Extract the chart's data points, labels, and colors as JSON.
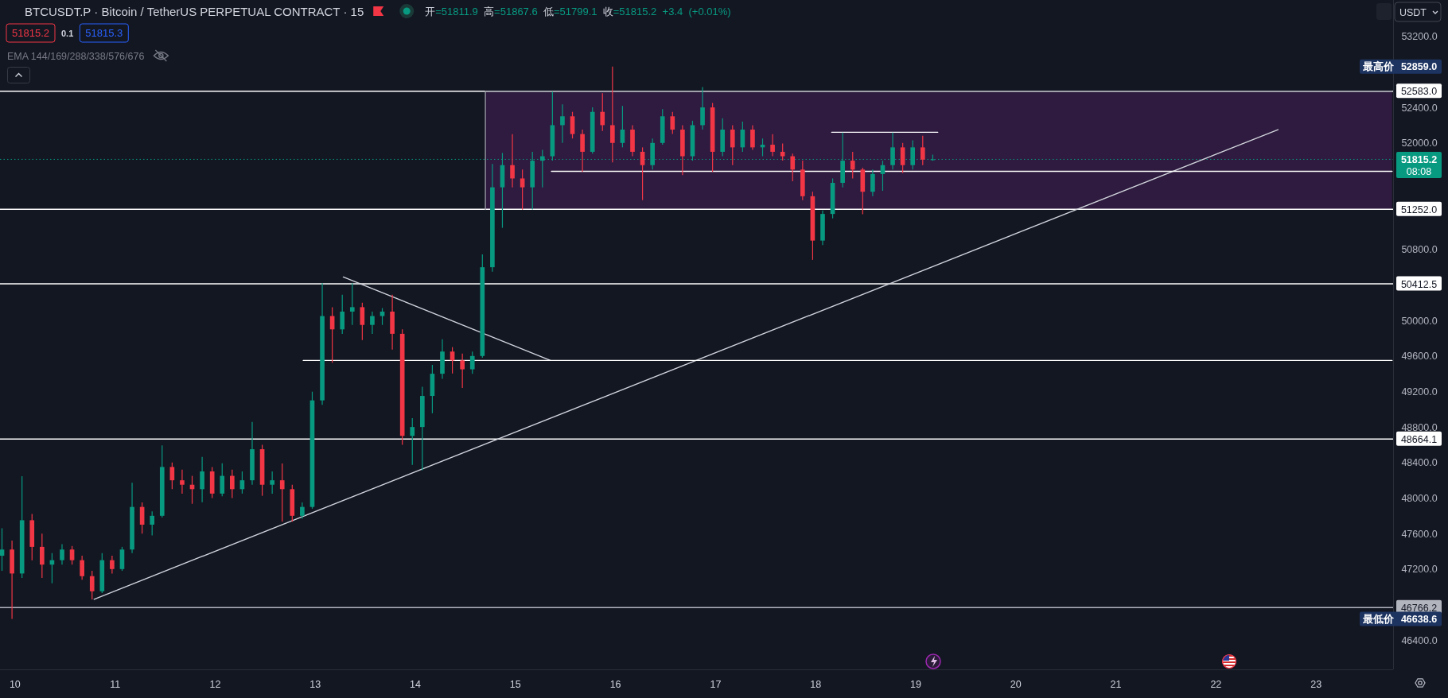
{
  "chart_data": {
    "type": "candlestick",
    "title": "BTCUSDT.P · Bitcoin / TetherUS PERPETUAL CONTRACT · 15",
    "subtitle": "开=51811.9 高=51867.6 低=51799.1 收=51815.2 +3.4 (+0.01%)",
    "x": [
      9.87,
      9.97,
      10.07,
      10.17,
      10.27,
      10.37,
      10.47,
      10.57,
      10.67,
      10.77,
      10.87,
      10.97,
      11.07,
      11.17,
      11.27,
      11.37,
      11.47,
      11.57,
      11.67,
      11.77,
      11.87,
      11.97,
      12.07,
      12.17,
      12.27,
      12.37,
      12.47,
      12.57,
      12.67,
      12.77,
      12.87,
      12.97,
      13.07,
      13.17,
      13.27,
      13.37,
      13.47,
      13.57,
      13.67,
      13.77,
      13.87,
      13.97,
      14.07,
      14.17,
      14.27,
      14.37,
      14.47,
      14.57,
      14.67,
      14.77,
      14.87,
      14.97,
      15.07,
      15.17,
      15.27,
      15.37,
      15.47,
      15.57,
      15.67,
      15.77,
      15.87,
      15.97,
      16.07,
      16.17,
      16.27,
      16.37,
      16.47,
      16.57,
      16.67,
      16.77,
      16.87,
      16.97,
      17.07,
      17.17,
      17.27,
      17.37,
      17.47,
      17.57,
      17.67,
      17.77,
      17.87,
      17.97,
      18.07,
      18.17,
      18.27,
      18.37,
      18.47,
      18.57,
      18.67,
      18.77,
      18.87,
      18.97,
      19.07,
      19.17
    ],
    "ohlc": [
      [
        47350,
        47660,
        47180,
        47420
      ],
      [
        47420,
        47520,
        46638.6,
        47150
      ],
      [
        47150,
        48245,
        47100,
        47750
      ],
      [
        47750,
        47820,
        47300,
        47450
      ],
      [
        47450,
        47600,
        47100,
        47250
      ],
      [
        47250,
        47380,
        47040,
        47300
      ],
      [
        47300,
        47480,
        47250,
        47420
      ],
      [
        47420,
        47460,
        47250,
        47300
      ],
      [
        47300,
        47350,
        47080,
        47120
      ],
      [
        47120,
        47180,
        46857,
        46950
      ],
      [
        46950,
        47380,
        46930,
        47300
      ],
      [
        47300,
        47350,
        47150,
        47200
      ],
      [
        47200,
        47450,
        47180,
        47420
      ],
      [
        47420,
        48172,
        47380,
        47900
      ],
      [
        47900,
        47950,
        47600,
        47700
      ],
      [
        47700,
        47850,
        47580,
        47800
      ],
      [
        47800,
        48593,
        47780,
        48350
      ],
      [
        48350,
        48400,
        48100,
        48200
      ],
      [
        48200,
        48320,
        48050,
        48150
      ],
      [
        48150,
        48250,
        47935,
        48100
      ],
      [
        48100,
        48463,
        47953,
        48300
      ],
      [
        48300,
        48350,
        48000,
        48050
      ],
      [
        48050,
        48391,
        48020,
        48250
      ],
      [
        48250,
        48320,
        48000,
        48100
      ],
      [
        48100,
        48300,
        48050,
        48200
      ],
      [
        48200,
        48857,
        48150,
        48550
      ],
      [
        48550,
        48600,
        48025,
        48150
      ],
      [
        48150,
        48300,
        48050,
        48200
      ],
      [
        48200,
        48390,
        47734,
        48100
      ],
      [
        48100,
        48150,
        47734,
        47800
      ],
      [
        47800,
        47950,
        47770,
        47900
      ],
      [
        47900,
        49198,
        47880,
        49100
      ],
      [
        49100,
        50419,
        49050,
        50050
      ],
      [
        50050,
        50150,
        49524,
        49900
      ],
      [
        49900,
        50290,
        49850,
        50100
      ],
      [
        50100,
        50419,
        49950,
        50150
      ],
      [
        50150,
        50200,
        49780,
        49950
      ],
      [
        49950,
        50100,
        49850,
        50050
      ],
      [
        50050,
        50140,
        49950,
        50100
      ],
      [
        50100,
        50290,
        49672,
        49850
      ],
      [
        49850,
        49900,
        48600,
        48700
      ],
      [
        48700,
        48900,
        48374,
        48800
      ],
      [
        48800,
        49254,
        48314,
        49150
      ],
      [
        49150,
        49500,
        48955,
        49400
      ],
      [
        49400,
        49788,
        49343,
        49650
      ],
      [
        49650,
        49700,
        49403,
        49550
      ],
      [
        49550,
        49627,
        49240,
        49450
      ],
      [
        49450,
        49650,
        49400,
        49600
      ],
      [
        49600,
        50745,
        49580,
        50600
      ],
      [
        50600,
        51763,
        50550,
        51500
      ],
      [
        51500,
        51887,
        51044,
        51750
      ],
      [
        51750,
        52099,
        51500,
        51600
      ],
      [
        51600,
        51700,
        51249,
        51500
      ],
      [
        51500,
        51900,
        51250,
        51800
      ],
      [
        51800,
        51922,
        51498,
        51850
      ],
      [
        51850,
        52577,
        51800,
        52200
      ],
      [
        52200,
        52435,
        52000,
        52300
      ],
      [
        52300,
        52350,
        52050,
        52100
      ],
      [
        52100,
        52150,
        51674,
        51900
      ],
      [
        51900,
        52400,
        51880,
        52350
      ],
      [
        52350,
        52560,
        52134,
        52200
      ],
      [
        52200,
        52859,
        51781,
        52000
      ],
      [
        52000,
        52417,
        51950,
        52150
      ],
      [
        52150,
        52200,
        51850,
        51900
      ],
      [
        51900,
        51950,
        51356,
        51750
      ],
      [
        51750,
        52050,
        51700,
        52000
      ],
      [
        52000,
        52382,
        51980,
        52300
      ],
      [
        52300,
        52350,
        52100,
        52150
      ],
      [
        52150,
        52200,
        51638,
        51850
      ],
      [
        51850,
        52250,
        51800,
        52200
      ],
      [
        52200,
        52630,
        52150,
        52400
      ],
      [
        52400,
        52450,
        51674,
        51900
      ],
      [
        51900,
        52277,
        51850,
        52150
      ],
      [
        52150,
        52200,
        51750,
        51950
      ],
      [
        51950,
        52241,
        51900,
        52150
      ],
      [
        52150,
        52200,
        51922,
        51950
      ],
      [
        51950,
        52050,
        51850,
        51980
      ],
      [
        51980,
        52099,
        51850,
        51900
      ],
      [
        51900,
        51993,
        51800,
        51850
      ],
      [
        51850,
        51880,
        51568,
        51700
      ],
      [
        51700,
        51800,
        51356,
        51400
      ],
      [
        51400,
        51450,
        50683,
        50900
      ],
      [
        50900,
        51240,
        50850,
        51200
      ],
      [
        51200,
        51600,
        51150,
        51550
      ],
      [
        51550,
        52117,
        51500,
        51800
      ],
      [
        51800,
        51900,
        51600,
        51700
      ],
      [
        51700,
        51720,
        51196,
        51450
      ],
      [
        51450,
        51700,
        51400,
        51650
      ],
      [
        51650,
        51800,
        51460,
        51750
      ],
      [
        51750,
        52117,
        51700,
        51950
      ],
      [
        51950,
        52000,
        51660,
        51750
      ],
      [
        51750,
        52030,
        51700,
        51950
      ],
      [
        51950,
        52080,
        51750,
        51811.9
      ],
      [
        51811.9,
        51867.6,
        51799.1,
        51815.2
      ]
    ],
    "colors": [
      "#089981",
      "#f23645",
      "#089981",
      "#f23645",
      "#f23645",
      "#089981",
      "#089981",
      "#f23645",
      "#f23645",
      "#f23645",
      "#089981",
      "#f23645",
      "#089981",
      "#089981",
      "#f23645",
      "#089981",
      "#089981",
      "#f23645",
      "#f23645",
      "#f23645",
      "#089981",
      "#f23645",
      "#089981",
      "#f23645",
      "#089981",
      "#089981",
      "#f23645",
      "#089981",
      "#f23645",
      "#f23645",
      "#089981",
      "#089981",
      "#089981",
      "#f23645",
      "#089981",
      "#089981",
      "#f23645",
      "#089981",
      "#089981",
      "#f23645",
      "#f23645",
      "#089981",
      "#089981",
      "#089981",
      "#089981",
      "#f23645",
      "#f23645",
      "#089981",
      "#089981",
      "#089981",
      "#089981",
      "#f23645",
      "#f23645",
      "#089981",
      "#089981",
      "#089981",
      "#089981",
      "#f23645",
      "#f23645",
      "#089981",
      "#f23645",
      "#f23645",
      "#089981",
      "#f23645",
      "#f23645",
      "#089981",
      "#089981",
      "#f23645",
      "#f23645",
      "#089981",
      "#089981",
      "#f23645",
      "#089981",
      "#f23645",
      "#089981",
      "#f23645",
      "#089981",
      "#f23645",
      "#f23645",
      "#f23645",
      "#f23645",
      "#f23645",
      "#089981",
      "#089981",
      "#089981",
      "#f23645",
      "#f23645",
      "#089981",
      "#089981",
      "#089981",
      "#f23645",
      "#089981",
      "#f23645",
      "#089981"
    ],
    "series": [
      {
        "type": "line",
        "x": [
          14.7,
          23.76
        ],
        "values": [
          52580,
          52580
        ],
        "lower": [
          51250,
          51250
        ],
        "upper": [
          52580,
          52580
        ],
        "color": "#9598a1"
      },
      {
        "type": "line",
        "x": [
          14.7,
          14.7
        ],
        "values": [
          51250,
          52580
        ],
        "color": "#9598a1"
      },
      {
        "type": "line",
        "x": [
          10.79,
          22.62
        ],
        "values": [
          46860,
          52150
        ],
        "color": "#d1d4dc"
      },
      {
        "type": "line",
        "x": [
          13.28,
          15.35
        ],
        "values": [
          50490,
          49550
        ],
        "color": "#d1d4dc"
      },
      {
        "type": "line",
        "x": [
          12.88,
          23.76
        ],
        "values": [
          49550,
          49550
        ],
        "color": "#ffffff"
      },
      {
        "type": "line",
        "x": [
          15.36,
          23.76
        ],
        "values": [
          51680,
          51680
        ],
        "color": "#ffffff"
      },
      {
        "type": "line",
        "x": [
          18.16,
          19.22
        ],
        "values": [
          52120,
          52120
        ],
        "color": "#ffffff"
      }
    ],
    "ref_lines": [
      {
        "axis": "y",
        "value": 52583,
        "label": "52583.0",
        "color": "#ffffff"
      },
      {
        "axis": "y",
        "value": 51252,
        "label": "51252.0",
        "color": "#ffffff"
      },
      {
        "axis": "y",
        "value": 50412.5,
        "label": "50412.5",
        "color": "#ffffff"
      },
      {
        "axis": "y",
        "value": 48664.1,
        "label": "48664.1",
        "color": "#ffffff"
      },
      {
        "axis": "y",
        "value": 46766.2,
        "label": "46766.2",
        "color": "#b2b5be"
      },
      {
        "axis": "y",
        "value": 51815.2,
        "label": "51815.2\n08:08",
        "color": "#089981",
        "line_style": "dotted"
      }
    ],
    "annotations": [
      "51815.2",
      "0.1",
      "51815.3",
      "EMA 144/169/288/338/576/676",
      "USDT",
      "最高价 52859.0",
      "最低价 46638.6"
    ],
    "xlim": [
      9.85,
      23.77
    ],
    "ylim": [
      46070,
      53610
    ],
    "xticks": [
      10,
      11,
      12,
      13,
      14,
      15,
      16,
      17,
      18,
      19,
      20,
      21,
      22,
      23
    ],
    "yticks": [
      {
        "value": 46400,
        "label": "46400.0"
      },
      {
        "value": 47200,
        "label": "47200.0"
      },
      {
        "value": 47600,
        "label": "47600.0"
      },
      {
        "value": 48000,
        "label": "48000.0"
      },
      {
        "value": 48400,
        "label": "48400.0"
      },
      {
        "value": 48800,
        "label": "48800.0"
      },
      {
        "value": 49200,
        "label": "49200.0"
      },
      {
        "value": 49600,
        "label": "49600.0"
      },
      {
        "value": 50000,
        "label": "50000.0"
      },
      {
        "value": 50800,
        "label": "50800.0"
      },
      {
        "value": 52000,
        "label": "52000.0"
      },
      {
        "value": 52400,
        "label": "52400.0"
      },
      {
        "value": 53200,
        "label": "53200.0"
      }
    ]
  }
}
